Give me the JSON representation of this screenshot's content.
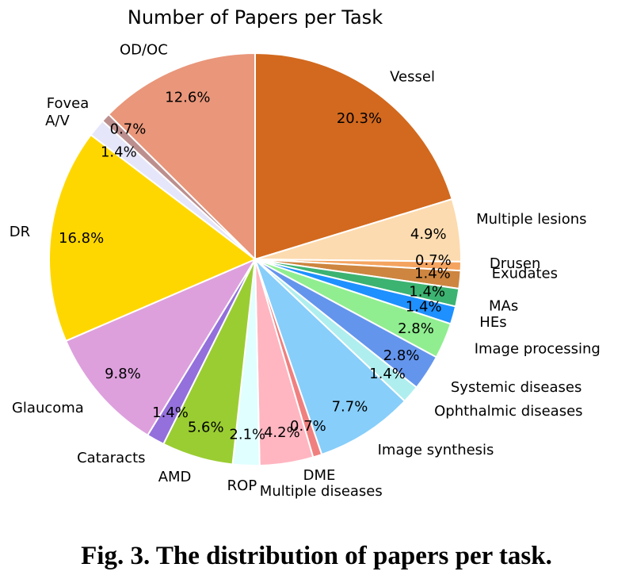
{
  "caption": "Fig. 3. The distribution of papers per task.",
  "chart_data": {
    "type": "pie",
    "title": "Number of Papers per Task",
    "slices": [
      {
        "label": "Vessel",
        "value": 20.3,
        "display": "20.3%",
        "color": "#D2691E"
      },
      {
        "label": "Multiple lesions",
        "value": 4.9,
        "display": "4.9%",
        "color": "#FCDBB0"
      },
      {
        "label": "Drusen",
        "value": 0.7,
        "display": "0.7%",
        "color": "#F4A460"
      },
      {
        "label": "Exudates",
        "value": 1.4,
        "display": "1.4%",
        "color": "#CD853F"
      },
      {
        "label": "MAs",
        "value": 1.4,
        "display": "1.4%",
        "color": "#3CB371"
      },
      {
        "label": "HEs",
        "value": 1.4,
        "display": "1.4%",
        "color": "#1E90FF"
      },
      {
        "label": "Image processing",
        "value": 2.8,
        "display": "2.8%",
        "color": "#90EE90"
      },
      {
        "label": "Systemic diseases",
        "value": 2.8,
        "display": "2.8%",
        "color": "#6495ED"
      },
      {
        "label": "Ophthalmic diseases",
        "value": 1.4,
        "display": "1.4%",
        "color": "#AFEEEE"
      },
      {
        "label": "Image synthesis",
        "value": 7.7,
        "display": "7.7%",
        "color": "#87CEFA"
      },
      {
        "label": "DME",
        "value": 0.7,
        "display": "0.7%",
        "color": "#F08080"
      },
      {
        "label": "Multiple diseases",
        "value": 4.2,
        "display": "4.2%",
        "color": "#FFB6C1"
      },
      {
        "label": "ROP",
        "value": 2.1,
        "display": "2.1%",
        "color": "#E0FFFF"
      },
      {
        "label": "AMD",
        "value": 5.6,
        "display": "5.6%",
        "color": "#9ACD32"
      },
      {
        "label": "Cataracts",
        "value": 1.4,
        "display": "1.4%",
        "color": "#9370DB"
      },
      {
        "label": "Glaucoma",
        "value": 9.8,
        "display": "9.8%",
        "color": "#DDA0DD"
      },
      {
        "label": "DR",
        "value": 16.8,
        "display": "16.8%",
        "color": "#FFD700"
      },
      {
        "label": "A/V",
        "value": 1.4,
        "display": "1.4%",
        "color": "#E6E6FA"
      },
      {
        "label": "Fovea",
        "value": 0.7,
        "display": "0.7%",
        "color": "#BC8F8F"
      },
      {
        "label": "OD/OC",
        "value": 12.6,
        "display": "12.6%",
        "color": "#E9967A"
      }
    ]
  }
}
